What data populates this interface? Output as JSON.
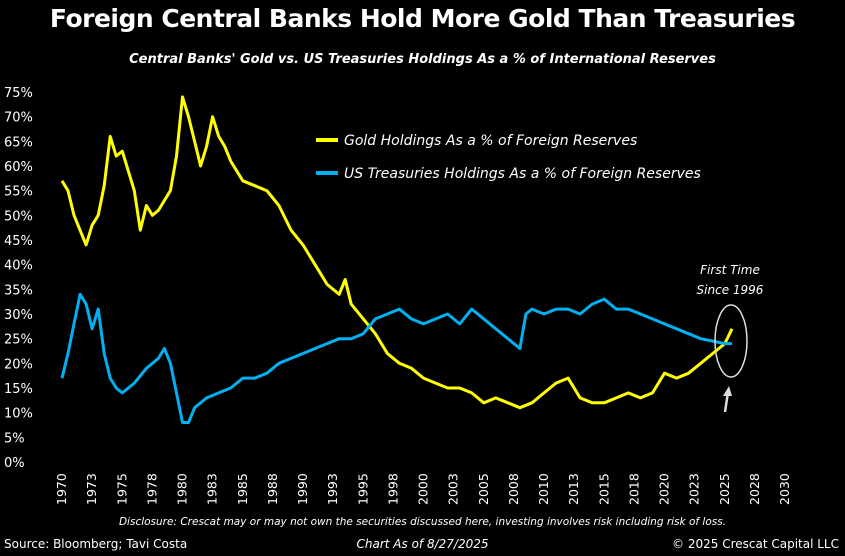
{
  "chart_data": {
    "type": "line",
    "title": "Foreign Central Banks Hold More Gold Than Treasuries",
    "subtitle": "Central Banks' Gold vs. US Treasuries Holdings As a % of International Reserves",
    "xlabel": "",
    "ylabel": "",
    "xlim": [
      1970,
      2030
    ],
    "ylim": [
      0,
      75
    ],
    "x_tick_labels": [
      "1970",
      "1973",
      "1975",
      "1978",
      "1980",
      "1983",
      "1985",
      "1988",
      "1990",
      "1993",
      "1995",
      "1998",
      "2000",
      "2003",
      "2005",
      "2008",
      "2010",
      "2013",
      "2015",
      "2018",
      "2020",
      "2023",
      "2025",
      "2028",
      "2030"
    ],
    "y_tick_labels": [
      "0%",
      "5%",
      "10%",
      "15%",
      "20%",
      "25%",
      "30%",
      "35%",
      "40%",
      "45%",
      "50%",
      "55%",
      "60%",
      "65%",
      "70%",
      "75%"
    ],
    "grid": false,
    "legend_placement": "top-center",
    "series": [
      {
        "name": "Gold Holdings As a % of Foreign Reserves",
        "color": "#ffff00",
        "x": [
          1970,
          1970.5,
          1971,
          1972,
          1972.5,
          1973,
          1973.5,
          1974,
          1974.5,
          1975,
          1975.5,
          1976,
          1976.5,
          1977,
          1977.5,
          1978,
          1978.5,
          1979,
          1979.5,
          1980,
          1980.5,
          1981,
          1981.5,
          1982,
          1982.5,
          1983,
          1983.5,
          1984,
          1985,
          1986,
          1987,
          1988,
          1989,
          1990,
          1991,
          1992,
          1993,
          1993.5,
          1994,
          1995,
          1996,
          1997,
          1998,
          1999,
          2000,
          2001,
          2002,
          2003,
          2004,
          2005,
          2006,
          2007,
          2008,
          2009,
          2010,
          2011,
          2012,
          2013,
          2014,
          2015,
          2016,
          2017,
          2018,
          2019,
          2020,
          2021,
          2022,
          2023,
          2024,
          2025,
          2025.6
        ],
        "values": [
          57,
          55,
          50,
          44,
          48,
          50,
          56,
          66,
          62,
          63,
          59,
          55,
          47,
          52,
          50,
          51,
          53,
          55,
          62,
          74,
          70,
          65,
          60,
          64,
          70,
          66,
          64,
          61,
          57,
          56,
          55,
          52,
          47,
          44,
          40,
          36,
          34,
          37,
          32,
          29,
          26,
          22,
          20,
          19,
          17,
          16,
          15,
          15,
          14,
          12,
          13,
          12,
          11,
          12,
          14,
          16,
          17,
          13,
          12,
          12,
          13,
          14,
          13,
          14,
          18,
          17,
          18,
          20,
          22,
          24,
          27
        ]
      },
      {
        "name": "US Treasuries Holdings As a % of Foreign Reserves",
        "color": "#00b0f0",
        "x": [
          1970,
          1970.5,
          1971,
          1971.5,
          1972,
          1972.5,
          1973,
          1973.5,
          1974,
          1974.5,
          1975,
          1976,
          1977,
          1978,
          1978.5,
          1979,
          1979.5,
          1980,
          1980.5,
          1981,
          1982,
          1983,
          1984,
          1985,
          1986,
          1987,
          1988,
          1989,
          1990,
          1991,
          1992,
          1993,
          1994,
          1995,
          1996,
          1997,
          1998,
          1999,
          2000,
          2001,
          2002,
          2003,
          2004,
          2005,
          2006,
          2007,
          2008,
          2008.5,
          2009,
          2010,
          2011,
          2012,
          2013,
          2014,
          2015,
          2016,
          2017,
          2018,
          2019,
          2020,
          2021,
          2022,
          2023,
          2024,
          2025,
          2025.6
        ],
        "values": [
          17,
          22,
          28,
          34,
          32,
          27,
          31,
          22,
          17,
          15,
          14,
          16,
          19,
          21,
          23,
          20,
          14,
          8,
          8,
          11,
          13,
          14,
          15,
          17,
          17,
          18,
          20,
          21,
          22,
          23,
          24,
          25,
          25,
          26,
          29,
          30,
          31,
          29,
          28,
          29,
          30,
          28,
          31,
          29,
          27,
          25,
          23,
          30,
          31,
          30,
          31,
          31,
          30,
          32,
          33,
          31,
          31,
          30,
          29,
          28,
          27,
          26,
          25,
          24.5,
          24,
          24
        ]
      }
    ],
    "annotations": [
      {
        "text_line1": "First Time",
        "text_line2": "Since 1996"
      }
    ]
  },
  "footer": {
    "disclosure": "Disclosure: Crescat may or may not own the securities discussed here, investing involves risk including risk of loss.",
    "source": "Source: Bloomberg; Tavi Costa",
    "as_of": "Chart As of 8/27/2025",
    "copyright": "© 2025 Crescat Capital LLC"
  }
}
